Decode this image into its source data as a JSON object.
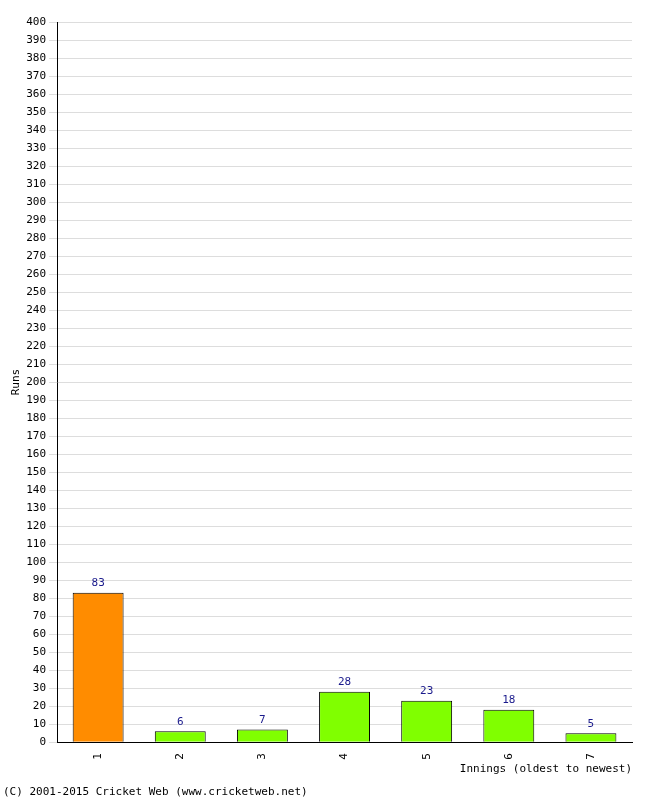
{
  "chart_data": {
    "type": "bar",
    "categories": [
      "1",
      "2",
      "3",
      "4",
      "5",
      "6",
      "7"
    ],
    "values": [
      83,
      6,
      7,
      28,
      23,
      18,
      5
    ],
    "colors": [
      "#ff8c00",
      "#80ff00",
      "#80ff00",
      "#80ff00",
      "#80ff00",
      "#80ff00",
      "#80ff00"
    ],
    "ylabel": "Runs",
    "xlabel": "Innings (oldest to newest)",
    "annotation": "(C) 2001-2015 Cricket Web (www.cricketweb.net)",
    "ylim": [
      0,
      400
    ],
    "yticks": [
      0,
      10,
      20,
      30,
      40,
      50,
      60,
      70,
      80,
      90,
      100,
      110,
      120,
      130,
      140,
      150,
      160,
      170,
      180,
      190,
      200,
      210,
      220,
      230,
      240,
      250,
      260,
      270,
      280,
      290,
      300,
      310,
      320,
      330,
      340,
      350,
      360,
      370,
      380,
      390,
      400
    ],
    "grid": true,
    "data_labels": true
  }
}
